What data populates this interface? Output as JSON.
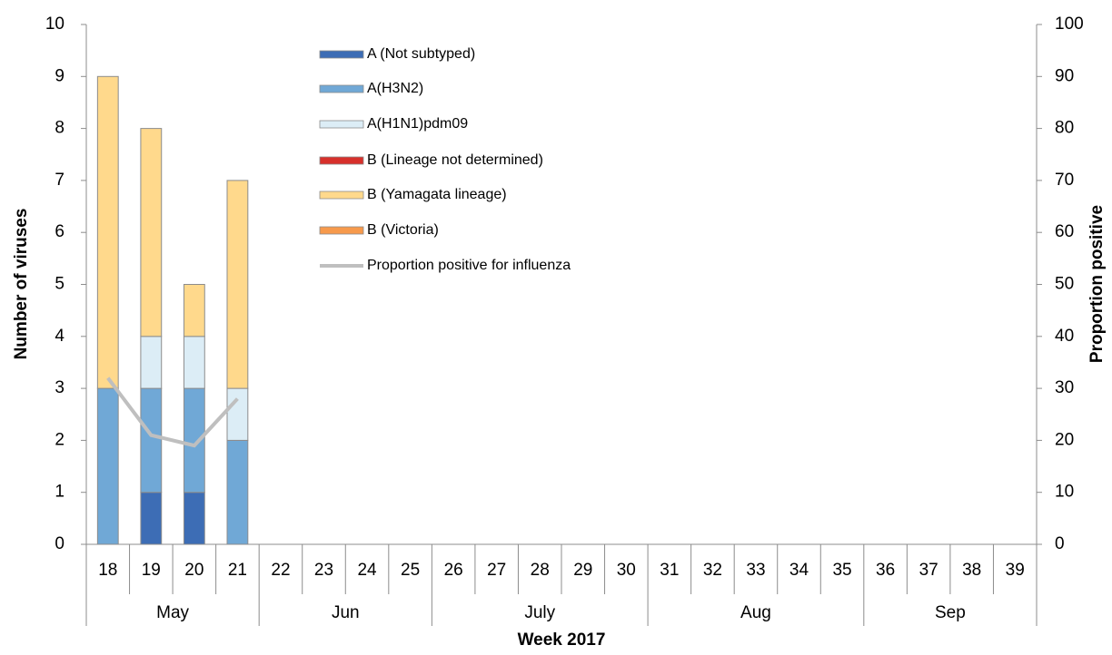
{
  "chart_data": {
    "type": "bar",
    "x_label": "Week 2017",
    "y_label": "Number of viruses",
    "y2_label": "Proportion positive",
    "categories": [
      "18",
      "19",
      "20",
      "21",
      "22",
      "23",
      "24",
      "25",
      "26",
      "27",
      "28",
      "29",
      "30",
      "31",
      "32",
      "33",
      "34",
      "35",
      "36",
      "37",
      "38",
      "39"
    ],
    "x_groups": [
      {
        "label": "May",
        "span": 4
      },
      {
        "label": "Jun",
        "span": 4
      },
      {
        "label": "July",
        "span": 5
      },
      {
        "label": "Aug",
        "span": 5
      },
      {
        "label": "Sep",
        "span": 4
      }
    ],
    "stacked": true,
    "series": [
      {
        "name": "A (Not subtyped)",
        "color": "#3d6db5",
        "values": [
          0,
          1,
          1,
          0,
          0,
          0,
          0,
          0,
          0,
          0,
          0,
          0,
          0,
          0,
          0,
          0,
          0,
          0,
          0,
          0,
          0,
          0
        ]
      },
      {
        "name": "A(H3N2)",
        "color": "#70a8d6",
        "values": [
          3,
          2,
          2,
          2,
          0,
          0,
          0,
          0,
          0,
          0,
          0,
          0,
          0,
          0,
          0,
          0,
          0,
          0,
          0,
          0,
          0,
          0
        ]
      },
      {
        "name": "A(H1N1)pdm09",
        "color": "#dcedf6",
        "values": [
          0,
          1,
          1,
          1,
          0,
          0,
          0,
          0,
          0,
          0,
          0,
          0,
          0,
          0,
          0,
          0,
          0,
          0,
          0,
          0,
          0,
          0
        ]
      },
      {
        "name": "B (Lineage not determined)",
        "color": "#d7302b",
        "values": [
          0,
          0,
          0,
          0,
          0,
          0,
          0,
          0,
          0,
          0,
          0,
          0,
          0,
          0,
          0,
          0,
          0,
          0,
          0,
          0,
          0,
          0
        ]
      },
      {
        "name": "B (Yamagata lineage)",
        "color": "#ffd98c",
        "values": [
          6,
          4,
          1,
          4,
          0,
          0,
          0,
          0,
          0,
          0,
          0,
          0,
          0,
          0,
          0,
          0,
          0,
          0,
          0,
          0,
          0,
          0
        ]
      },
      {
        "name": "B (Victoria)",
        "color": "#f79a4c",
        "values": [
          0,
          0,
          0,
          0,
          0,
          0,
          0,
          0,
          0,
          0,
          0,
          0,
          0,
          0,
          0,
          0,
          0,
          0,
          0,
          0,
          0,
          0
        ]
      },
      {
        "name": "Proportion positive for influenza",
        "type": "line",
        "axis": "y2",
        "color": "#bfbfbf",
        "values": [
          32,
          21,
          19,
          28,
          null,
          null,
          null,
          null,
          null,
          null,
          null,
          null,
          null,
          null,
          null,
          null,
          null,
          null,
          null,
          null,
          null,
          null
        ]
      }
    ],
    "ylim": [
      0,
      10
    ],
    "yticks": [
      0,
      1,
      2,
      3,
      4,
      5,
      6,
      7,
      8,
      9,
      10
    ],
    "y2lim": [
      0,
      100
    ],
    "y2ticks": [
      0,
      10,
      20,
      30,
      40,
      50,
      60,
      70,
      80,
      90,
      100
    ]
  }
}
